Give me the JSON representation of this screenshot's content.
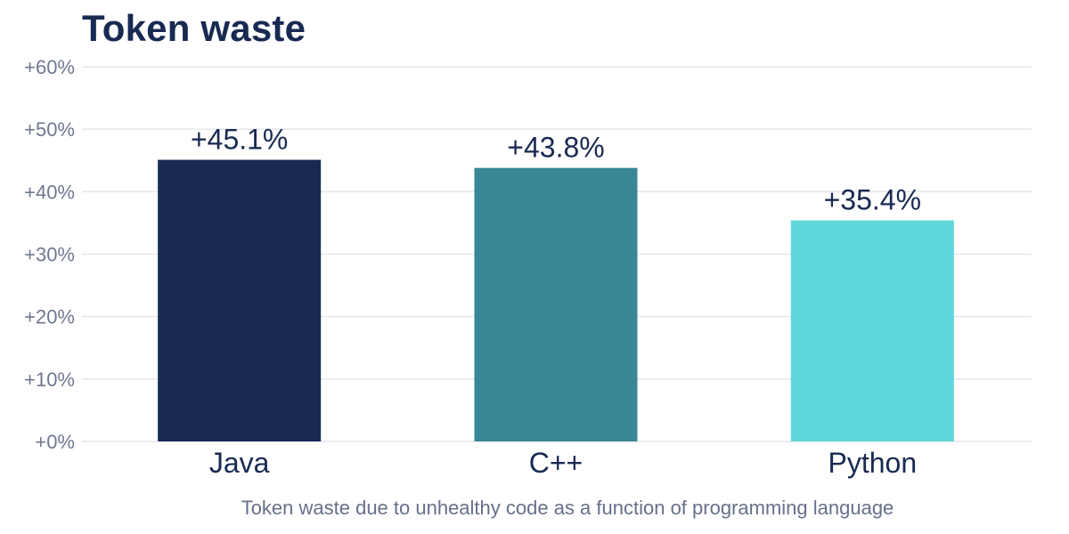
{
  "chart_data": {
    "type": "bar",
    "title": "Token waste",
    "caption": "Token waste due to unhealthy code as a function of programming language",
    "categories": [
      "Java",
      "C++",
      "Python"
    ],
    "values": [
      45.1,
      43.8,
      35.4
    ],
    "value_labels": [
      "+45.1%",
      "+43.8%",
      "+35.4%"
    ],
    "colors": [
      "#182a52",
      "#388696",
      "#5fd6da"
    ],
    "ylim": [
      0,
      60
    ],
    "yticks": [
      0,
      10,
      20,
      30,
      40,
      50,
      60
    ],
    "ytick_labels": [
      "+0%",
      "+10%",
      "+20%",
      "+30%",
      "+40%",
      "+50%",
      "+60%"
    ],
    "grid": true,
    "legend": "none"
  }
}
